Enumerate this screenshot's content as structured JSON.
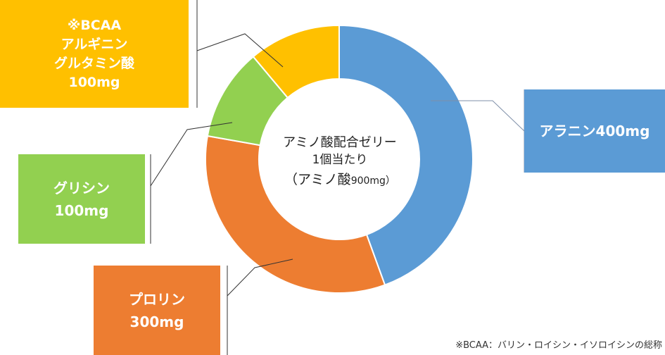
{
  "chart_data": {
    "type": "pie",
    "variant": "donut",
    "start_angle_deg": 0,
    "direction": "clockwise",
    "slices": [
      {
        "key": "alanine",
        "label": "アラニン",
        "amount_text": "400mg",
        "value": 400,
        "color": "#5B9BD5"
      },
      {
        "key": "proline",
        "label": "プロリン",
        "amount_text": "300mg",
        "value": 300,
        "color": "#ED7D31"
      },
      {
        "key": "glycine",
        "label": "グリシン",
        "amount_text": "100mg",
        "value": 100,
        "color": "#92D050"
      },
      {
        "key": "bcaa",
        "label_lines": [
          "※BCAA",
          "アルギニン",
          "グルタミン酸"
        ],
        "amount_text": "100mg",
        "value": 100,
        "color": "#FFC000"
      }
    ],
    "center_label": {
      "line1": "アミノ酸配合ゼリー",
      "line2": "1個当たり",
      "line3_open": "（アミノ",
      "line3_mid": "酸",
      "line3_small": "900mg）"
    },
    "footnote": "※BCAA：バリン・ロイシン・イソロイシンの総称",
    "ring_stroke_color": "#ffffff",
    "leader_line_color": "#333333",
    "box_line_color": "#7f8fa8"
  }
}
